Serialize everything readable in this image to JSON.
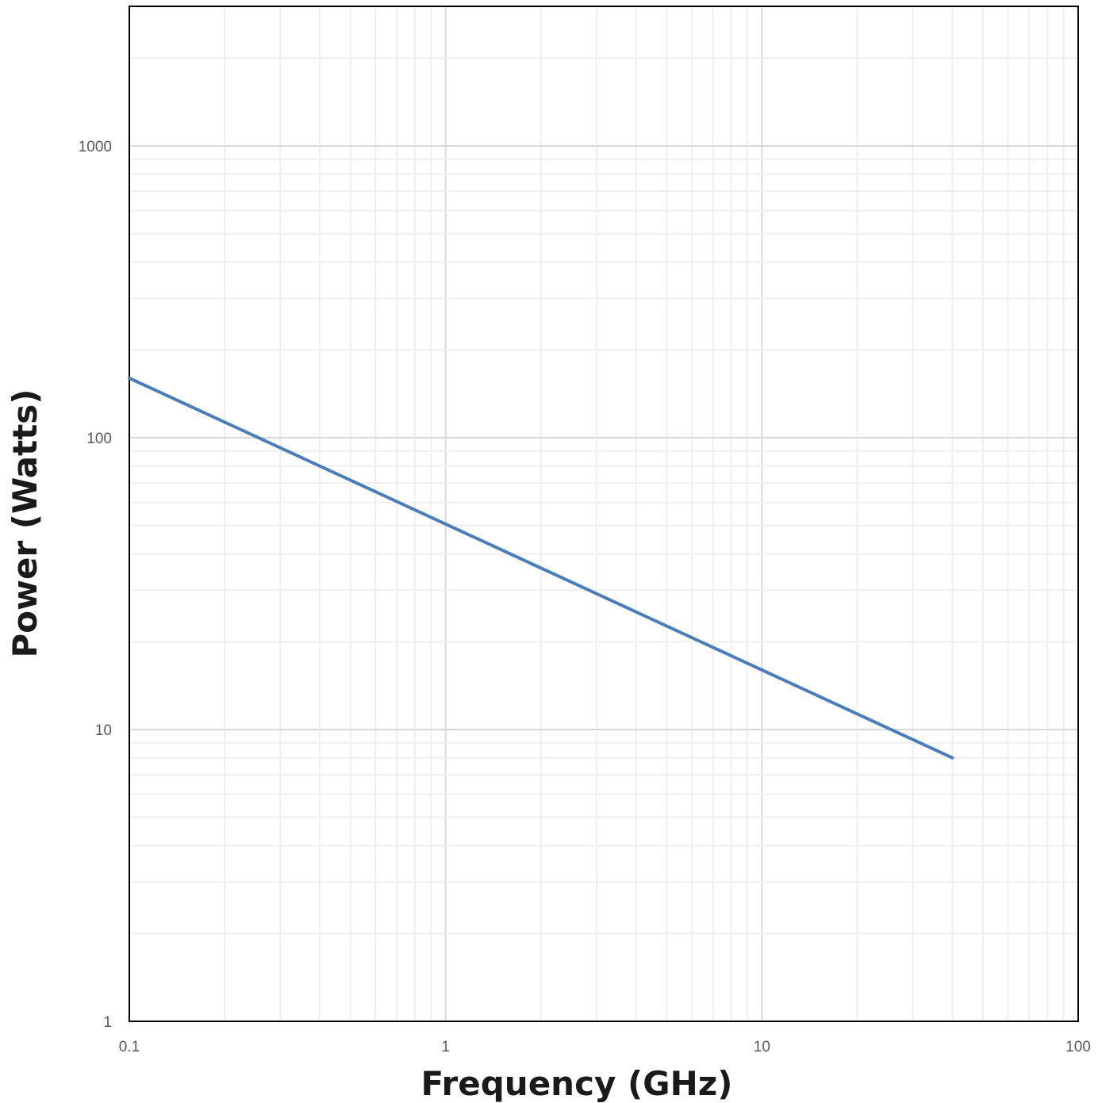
{
  "chart_data": {
    "type": "line",
    "title": "",
    "xlabel": "Frequency (GHz)",
    "ylabel": "Power (Watts)",
    "x_scale": "log",
    "y_scale": "log",
    "xlim": [
      0.1,
      100
    ],
    "ylim": [
      1,
      3000
    ],
    "x_ticks": [
      0.1,
      1,
      10,
      100
    ],
    "x_tick_labels": [
      "0.1",
      "1",
      "10",
      "100"
    ],
    "y_ticks": [
      1,
      10,
      100,
      1000
    ],
    "y_tick_labels": [
      "1",
      "10",
      "100",
      "1000"
    ],
    "grid": "major and minor",
    "legend": "none",
    "series": [
      {
        "color": "#4a7ebb",
        "x": [
          0.1,
          40
        ],
        "y": [
          160,
          8
        ]
      }
    ]
  }
}
